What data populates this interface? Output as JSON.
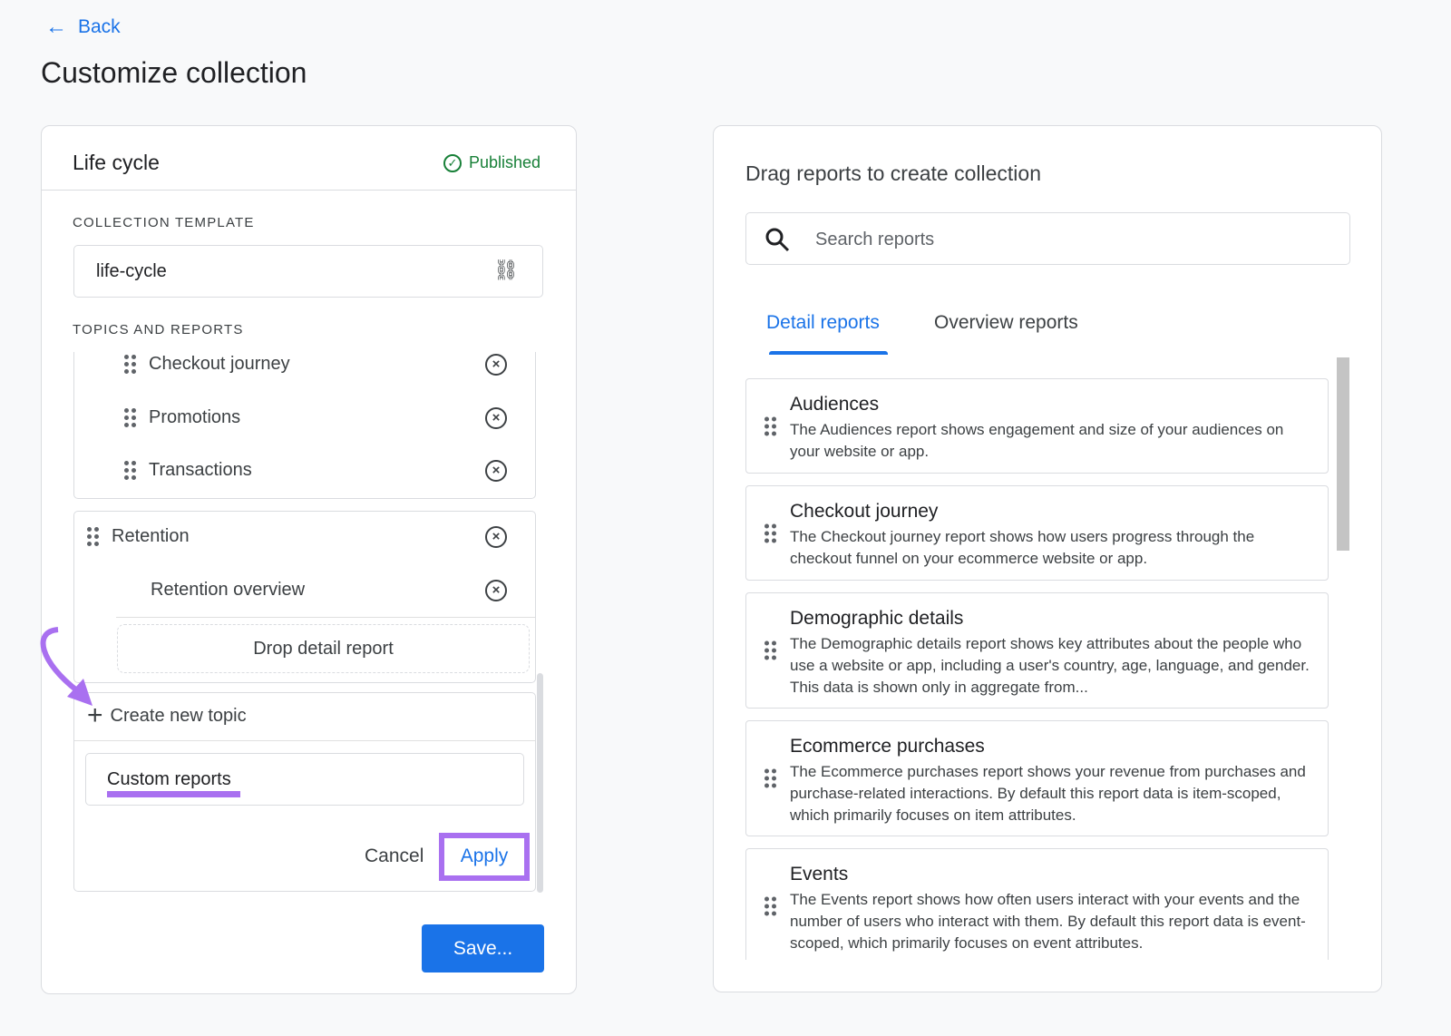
{
  "nav": {
    "back_label": "Back"
  },
  "page": {
    "title": "Customize collection"
  },
  "collection": {
    "name": "Life cycle",
    "status": "Published",
    "status_color": "#188038",
    "template_label": "COLLECTION TEMPLATE",
    "template_value": "life-cycle",
    "topics_label": "TOPICS AND REPORTS",
    "reports": [
      "Checkout journey",
      "Promotions",
      "Transactions"
    ],
    "topic2": {
      "name": "Retention",
      "reports": [
        "Retention overview"
      ],
      "drop_label": "Drop detail report"
    },
    "create_topic_label": "Create new topic",
    "new_topic_value": "Custom reports",
    "cancel_label": "Cancel",
    "apply_label": "Apply",
    "save_label": "Save..."
  },
  "library": {
    "title": "Drag reports to create collection",
    "search_placeholder": "Search reports",
    "tabs": [
      {
        "label": "Detail reports",
        "active": true
      },
      {
        "label": "Overview reports",
        "active": false
      }
    ],
    "items": [
      {
        "title": "Audiences",
        "desc": "The Audiences report shows engagement and size of your audiences on your website or app."
      },
      {
        "title": "Checkout journey",
        "desc": "The Checkout journey report shows how users progress through the checkout funnel on your ecommerce website or app."
      },
      {
        "title": "Demographic details",
        "desc": "The Demographic details report shows key attributes about the people who use a website or app, including a user's country, age, language, and gender. This data is shown only in aggregate from..."
      },
      {
        "title": "Ecommerce purchases",
        "desc": "The Ecommerce purchases report shows your revenue from purchases and purchase-related interactions. By default this report data is item-scoped, which primarily focuses on item attributes."
      },
      {
        "title": "Events",
        "desc": "The Events report shows how often users interact with your events and the number of users who interact with them. By default this report data is event-scoped, which primarily focuses on event attributes."
      }
    ]
  },
  "colors": {
    "accent": "#1a73e8",
    "annotation": "#a970f0"
  }
}
